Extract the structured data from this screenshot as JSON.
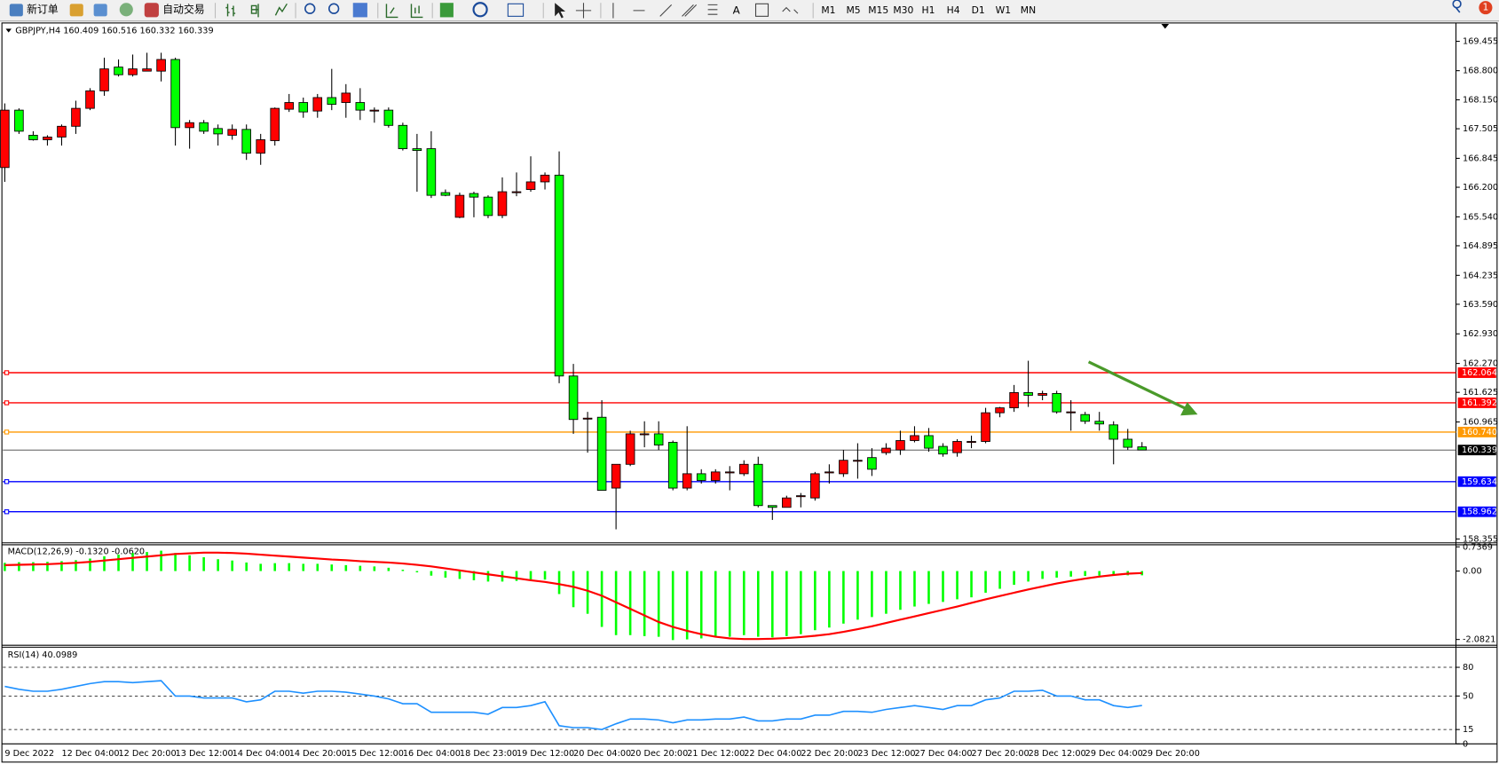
{
  "toolbar": {
    "new_order": "新订单",
    "auto_trading": "自动交易",
    "timeframes": [
      "M1",
      "M5",
      "M15",
      "M30",
      "H1",
      "H4",
      "D1",
      "W1",
      "MN"
    ],
    "alerts": 1
  },
  "chart_data": [
    {
      "type": "candlestick",
      "title": "GBPJPY,H4 160.409 160.516 160.332 160.339",
      "categories": [
        "9 Dec 2022",
        null,
        null,
        null,
        "12 Dec 04:00",
        null,
        null,
        null,
        "12 Dec 20:00",
        null,
        null,
        null,
        "13 Dec 12:00",
        null,
        null,
        null,
        "14 Dec 04:00",
        null,
        null,
        null,
        "14 Dec 20:00",
        null,
        null,
        null,
        "15 Dec 12:00",
        null,
        null,
        null,
        "16 Dec 04:00",
        null,
        null,
        null,
        "18 Dec 23:00",
        null,
        null,
        null,
        "19 Dec 12:00",
        null,
        null,
        null,
        "20 Dec 04:00",
        null,
        null,
        null,
        "20 Dec 20:00",
        null,
        null,
        null,
        "21 Dec 12:00",
        null,
        null,
        null,
        "22 Dec 04:00",
        null,
        null,
        null,
        "22 Dec 20:00",
        null,
        null,
        null,
        "23 Dec 12:00",
        null,
        null,
        null,
        "27 Dec 04:00",
        null,
        null,
        null,
        "27 Dec 20:00",
        null,
        null,
        null,
        "28 Dec 12:00",
        null,
        null,
        null,
        "29 Dec 04:00",
        null,
        null,
        null,
        "29 Dec 20:00"
      ],
      "open": [
        166.64,
        167.92,
        167.36,
        167.26,
        167.32,
        167.56,
        167.96,
        168.35,
        168.88,
        168.71,
        168.79,
        168.79,
        169.05,
        167.53,
        167.64,
        167.51,
        167.36,
        167.49,
        166.96,
        167.24,
        167.94,
        168.09,
        167.9,
        168.2,
        168.09,
        168.09,
        167.92,
        167.92,
        167.58,
        167.06,
        167.06,
        166.08,
        165.53,
        166.06,
        165.98,
        165.57,
        166.1,
        166.15,
        166.32,
        166.47,
        161.99,
        161.05,
        161.07,
        159.49,
        160.02,
        160.7,
        160.7,
        160.51,
        159.49,
        159.81,
        159.66,
        159.85,
        159.81,
        160.02,
        159.1,
        159.06,
        159.32,
        159.27,
        159.85,
        159.81,
        160.11,
        160.17,
        160.28,
        160.34,
        160.55,
        160.66,
        160.42,
        160.28,
        160.53,
        160.53,
        161.17,
        161.28,
        161.62,
        161.56,
        161.6,
        161.19,
        161.13,
        160.98,
        160.9,
        160.58,
        160.409
      ],
      "high": [
        168.07,
        167.96,
        167.45,
        167.36,
        167.6,
        168.13,
        168.41,
        169.09,
        169.05,
        169.16,
        169.2,
        169.2,
        169.09,
        167.7,
        167.7,
        167.6,
        167.6,
        167.6,
        167.39,
        167.98,
        168.28,
        168.2,
        168.28,
        168.84,
        168.5,
        168.41,
        167.98,
        167.98,
        167.64,
        167.39,
        167.45,
        166.15,
        166.08,
        166.1,
        166.02,
        166.42,
        166.53,
        166.89,
        166.53,
        167.0,
        162.26,
        161.19,
        161.45,
        160.02,
        160.77,
        160.98,
        160.98,
        160.55,
        160.87,
        159.91,
        159.91,
        159.98,
        160.11,
        160.19,
        159.1,
        159.32,
        159.38,
        159.85,
        160.02,
        160.34,
        160.49,
        160.38,
        160.49,
        160.77,
        160.87,
        160.83,
        160.49,
        160.58,
        160.66,
        161.28,
        161.3,
        161.79,
        162.33,
        161.66,
        161.66,
        161.45,
        161.19,
        161.19,
        160.98,
        160.81,
        160.516
      ],
      "low": [
        166.32,
        167.39,
        167.24,
        167.13,
        167.13,
        167.39,
        167.92,
        168.24,
        168.67,
        168.67,
        168.79,
        168.56,
        167.13,
        167.06,
        167.39,
        167.13,
        167.26,
        166.81,
        166.7,
        167.13,
        167.88,
        167.75,
        167.75,
        167.92,
        167.75,
        167.7,
        167.64,
        167.53,
        167.02,
        166.1,
        165.96,
        166.0,
        165.51,
        165.53,
        165.51,
        165.51,
        166.0,
        166.1,
        166.15,
        161.83,
        160.7,
        160.28,
        159.44,
        158.57,
        159.98,
        160.4,
        160.34,
        159.44,
        159.44,
        159.59,
        159.59,
        159.44,
        159.76,
        159.06,
        158.78,
        159.06,
        159.06,
        159.21,
        159.59,
        159.74,
        159.7,
        159.76,
        160.23,
        160.23,
        160.51,
        160.3,
        160.19,
        160.19,
        160.38,
        160.49,
        161.07,
        161.19,
        161.3,
        161.45,
        161.15,
        160.77,
        160.92,
        160.77,
        160.02,
        160.34,
        160.332
      ],
      "close": [
        167.92,
        167.45,
        167.26,
        167.32,
        167.56,
        167.96,
        168.35,
        168.84,
        168.71,
        168.84,
        168.84,
        169.05,
        167.53,
        167.64,
        167.45,
        167.39,
        167.49,
        166.96,
        167.26,
        167.96,
        168.09,
        167.88,
        168.2,
        168.05,
        168.3,
        167.92,
        167.92,
        167.58,
        167.06,
        167.02,
        166.02,
        166.02,
        166.02,
        165.98,
        165.57,
        166.1,
        166.1,
        166.32,
        166.47,
        161.99,
        161.02,
        161.05,
        159.44,
        160.02,
        160.7,
        160.7,
        160.45,
        159.49,
        159.81,
        159.66,
        159.85,
        159.85,
        160.02,
        159.1,
        159.06,
        159.27,
        159.32,
        159.81,
        159.85,
        160.11,
        160.11,
        159.91,
        160.38,
        160.55,
        160.66,
        160.38,
        160.25,
        160.53,
        160.53,
        161.17,
        161.28,
        161.62,
        161.56,
        161.6,
        161.19,
        161.19,
        160.98,
        160.92,
        160.58,
        160.4,
        160.339
      ],
      "up_color": "#ff0000",
      "down_color": "#00ff00",
      "ylim": [
        158.29,
        169.8
      ],
      "yticks": [
        169.455,
        {
          "value": 168.8,
          "label": "168.800"
        },
        {
          "value": 168.15,
          "label": "168.150"
        },
        167.505,
        166.845,
        {
          "value": 166.2,
          "label": "166.200"
        },
        {
          "value": 165.54,
          "label": "165.540"
        },
        164.895,
        164.235,
        {
          "value": 163.59,
          "label": "163.590"
        },
        {
          "value": 162.93,
          "label": "162.930"
        },
        {
          "value": 162.27,
          "label": "162.270"
        },
        161.625,
        160.965,
        158.355
      ],
      "levels": [
        {
          "value": 162.064,
          "color": "#ff0000"
        },
        {
          "value": 161.392,
          "color": "#ff0000"
        },
        {
          "value": 160.74,
          "label": "160.740",
          "color": "#ff9900"
        },
        {
          "value": 159.634,
          "color": "#0000ff"
        },
        {
          "value": 158.962,
          "color": "#0000ff"
        }
      ],
      "last_price": 160.339
    },
    {
      "type": "macd",
      "title": "MACD(12,26,9) -0.1320 -0.0620",
      "histogram": [
        0.25,
        0.27,
        0.27,
        0.28,
        0.3,
        0.33,
        0.38,
        0.45,
        0.5,
        0.55,
        0.58,
        0.62,
        0.55,
        0.48,
        0.42,
        0.36,
        0.32,
        0.26,
        0.22,
        0.24,
        0.24,
        0.22,
        0.22,
        0.2,
        0.18,
        0.16,
        0.14,
        0.1,
        0.04,
        -0.04,
        -0.14,
        -0.2,
        -0.24,
        -0.28,
        -0.32,
        -0.32,
        -0.3,
        -0.28,
        -0.26,
        -0.7,
        -1.1,
        -1.3,
        -1.7,
        -1.95,
        -1.95,
        -1.98,
        -2.0,
        -2.1,
        -2.08,
        -2.05,
        -2.02,
        -2.0,
        -1.95,
        -2.0,
        -2.02,
        -1.98,
        -1.92,
        -1.8,
        -1.72,
        -1.6,
        -1.48,
        -1.4,
        -1.3,
        -1.18,
        -1.08,
        -1.0,
        -0.94,
        -0.86,
        -0.8,
        -0.66,
        -0.54,
        -0.42,
        -0.32,
        -0.24,
        -0.2,
        -0.17,
        -0.15,
        -0.14,
        -0.13,
        -0.13,
        -0.13
      ],
      "signal": [
        0.18,
        0.19,
        0.2,
        0.21,
        0.23,
        0.25,
        0.28,
        0.32,
        0.36,
        0.4,
        0.44,
        0.48,
        0.52,
        0.54,
        0.56,
        0.56,
        0.55,
        0.53,
        0.5,
        0.47,
        0.44,
        0.41,
        0.38,
        0.35,
        0.33,
        0.3,
        0.28,
        0.26,
        0.23,
        0.19,
        0.14,
        0.08,
        0.02,
        -0.04,
        -0.1,
        -0.16,
        -0.22,
        -0.28,
        -0.33,
        -0.4,
        -0.48,
        -0.6,
        -0.75,
        -0.95,
        -1.15,
        -1.35,
        -1.55,
        -1.7,
        -1.82,
        -1.92,
        -2.0,
        -2.05,
        -2.07,
        -2.07,
        -2.06,
        -2.04,
        -2.01,
        -1.97,
        -1.92,
        -1.85,
        -1.77,
        -1.68,
        -1.58,
        -1.48,
        -1.38,
        -1.28,
        -1.18,
        -1.08,
        -0.97,
        -0.86,
        -0.76,
        -0.66,
        -0.56,
        -0.47,
        -0.38,
        -0.3,
        -0.23,
        -0.17,
        -0.12,
        -0.08,
        -0.06
      ],
      "histogram_color": "#00ff00",
      "signal_color": "#ff0000",
      "ylim": [
        -2.23,
        0.8
      ],
      "yticks": [
        0.7369,
        {
          "value": 0,
          "label": "0.00"
        },
        -2.0821
      ]
    },
    {
      "type": "line",
      "title": "RSI(14) 40.0989",
      "values": [
        60,
        57,
        55,
        55,
        57,
        60,
        63,
        65,
        65,
        64,
        65,
        66,
        50,
        50,
        48,
        48,
        48,
        44,
        46,
        55,
        55,
        53,
        55,
        55,
        54,
        52,
        50,
        47,
        42,
        42,
        33,
        33,
        33,
        33,
        31,
        38,
        38,
        40,
        44,
        19,
        17,
        17,
        15,
        21,
        26,
        26,
        25,
        22,
        25,
        25,
        26,
        26,
        28,
        24,
        24,
        26,
        26,
        30,
        30,
        34,
        34,
        33,
        36,
        38,
        40,
        38,
        36,
        40,
        40,
        46,
        48,
        55,
        55,
        56,
        50,
        50,
        46,
        46,
        40,
        38,
        40.1
      ],
      "color": "#1e90ff",
      "ylim": [
        0,
        100
      ],
      "yticks": [
        80,
        50,
        15,
        0
      ],
      "grid_dashed": true
    }
  ]
}
